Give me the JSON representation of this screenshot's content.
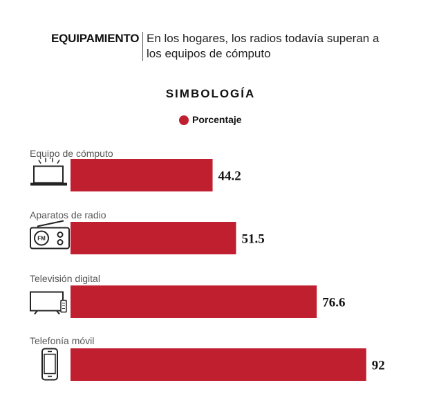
{
  "header": {
    "kicker": "EQUIPAMIENTO",
    "subtitle": "En los hogares, los radios todavía superan a los equipos de cómputo"
  },
  "legend": {
    "title": "SIMBOLOGÍA",
    "series_label": "Porcentaje"
  },
  "colors": {
    "bar": "#c01f2f"
  },
  "chart_data": {
    "type": "bar",
    "orientation": "horizontal",
    "categories": [
      "Equipo de cómputo",
      "Aparatos de radio",
      "Televisión digital",
      "Telefonía móvil"
    ],
    "icons": [
      "laptop-icon",
      "radio-icon",
      "tv-icon",
      "smartphone-icon"
    ],
    "series": [
      {
        "name": "Porcentaje",
        "values": [
          44.2,
          51.5,
          76.6,
          92
        ]
      }
    ],
    "xlim": [
      0,
      100
    ],
    "grid": false,
    "legend_position": "top-center"
  }
}
